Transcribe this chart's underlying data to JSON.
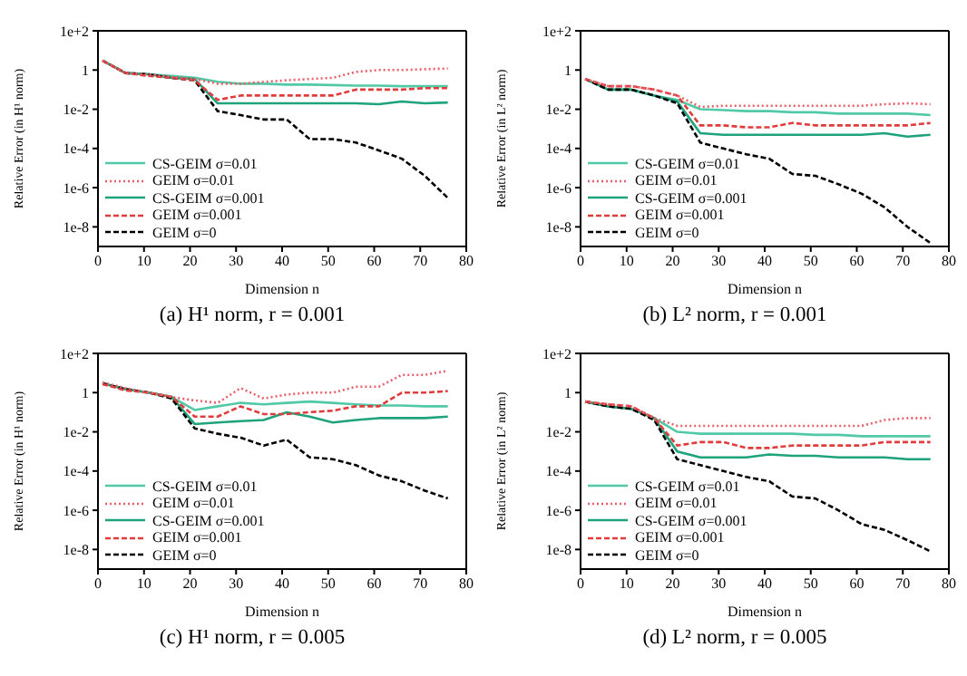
{
  "chart_data": [
    {
      "type": "line",
      "title": "(a) H¹ norm, r = 0.001",
      "xlabel": "Dimension n",
      "ylabel": "Relative Error (in H¹ norm)",
      "log": "y",
      "legend": "bottom left",
      "x": [
        1,
        6,
        11,
        16,
        21,
        26,
        31,
        36,
        41,
        46,
        51,
        56,
        61,
        66,
        71,
        76
      ],
      "xlim": [
        0,
        80
      ],
      "xticks": [
        0,
        10,
        20,
        30,
        40,
        50,
        60,
        70,
        80
      ],
      "ylim": [
        1e-09,
        100
      ],
      "yticks": [
        {
          "value": 100,
          "label": "1e+2"
        },
        {
          "value": 1,
          "label": "1"
        },
        {
          "value": 0.01,
          "label": "1e-2"
        },
        {
          "value": 0.0001,
          "label": "1e-4"
        },
        {
          "value": 1e-06,
          "label": "1e-6"
        },
        {
          "value": 1e-08,
          "label": "1e-8"
        }
      ],
      "series": [
        {
          "name": "CS-GEIM σ=0.01",
          "color": "#52c9a6",
          "line_style": "solid",
          "values": [
            3,
            0.7,
            0.6,
            0.5,
            0.4,
            0.25,
            0.2,
            0.2,
            0.18,
            0.18,
            0.17,
            0.16,
            0.16,
            0.15,
            0.15,
            0.15
          ]
        },
        {
          "name": "GEIM σ=0.01",
          "color": "#e8606a",
          "line_style": "dotted",
          "values": [
            3,
            0.7,
            0.6,
            0.45,
            0.35,
            0.2,
            0.2,
            0.25,
            0.3,
            0.35,
            0.4,
            0.8,
            1,
            1,
            1.1,
            1.2
          ]
        },
        {
          "name": "CS-GEIM σ=0.001",
          "color": "#1fa37c",
          "line_style": "solid",
          "values": [
            3,
            0.7,
            0.6,
            0.4,
            0.35,
            0.02,
            0.02,
            0.02,
            0.02,
            0.02,
            0.02,
            0.02,
            0.018,
            0.025,
            0.02,
            0.022
          ]
        },
        {
          "name": "GEIM σ=0.001",
          "color": "#e03c3c",
          "line_style": "dashed",
          "values": [
            3,
            0.7,
            0.5,
            0.4,
            0.3,
            0.03,
            0.05,
            0.05,
            0.05,
            0.05,
            0.05,
            0.1,
            0.1,
            0.1,
            0.12,
            0.12
          ]
        },
        {
          "name": "GEIM σ=0",
          "color": "#000000",
          "line_style": "dashed",
          "values": [
            3,
            0.7,
            0.6,
            0.4,
            0.3,
            0.008,
            0.005,
            0.003,
            0.003,
            0.0003,
            0.0003,
            0.0002,
            8e-05,
            3e-05,
            4e-06,
            3e-07
          ]
        }
      ]
    },
    {
      "type": "line",
      "title": "(b) L² norm, r = 0.001",
      "xlabel": "Dimension n",
      "ylabel": "Relative Error (in L² norm)",
      "log": "y",
      "legend": "bottom left",
      "x": [
        1,
        6,
        11,
        16,
        21,
        26,
        31,
        36,
        41,
        46,
        51,
        56,
        61,
        66,
        71,
        76
      ],
      "xlim": [
        0,
        80
      ],
      "xticks": [
        0,
        10,
        20,
        30,
        40,
        50,
        60,
        70,
        80
      ],
      "ylim": [
        1e-09,
        100
      ],
      "yticks": [
        {
          "value": 100,
          "label": "1e+2"
        },
        {
          "value": 1,
          "label": "1"
        },
        {
          "value": 0.01,
          "label": "1e-2"
        },
        {
          "value": 0.0001,
          "label": "1e-4"
        },
        {
          "value": 1e-06,
          "label": "1e-6"
        },
        {
          "value": 1e-08,
          "label": "1e-8"
        }
      ],
      "series": [
        {
          "name": "CS-GEIM σ=0.01",
          "color": "#52c9a6",
          "line_style": "solid",
          "values": [
            0.35,
            0.1,
            0.1,
            0.05,
            0.03,
            0.01,
            0.009,
            0.008,
            0.008,
            0.007,
            0.007,
            0.006,
            0.006,
            0.006,
            0.006,
            0.005
          ]
        },
        {
          "name": "GEIM σ=0.01",
          "color": "#e8606a",
          "line_style": "dotted",
          "values": [
            0.35,
            0.15,
            0.15,
            0.1,
            0.05,
            0.013,
            0.015,
            0.015,
            0.015,
            0.015,
            0.015,
            0.015,
            0.015,
            0.018,
            0.02,
            0.018
          ]
        },
        {
          "name": "CS-GEIM σ=0.001",
          "color": "#1fa37c",
          "line_style": "solid",
          "values": [
            0.35,
            0.1,
            0.1,
            0.05,
            0.025,
            0.0006,
            0.0005,
            0.0005,
            0.0005,
            0.0005,
            0.0005,
            0.0005,
            0.0005,
            0.0006,
            0.0004,
            0.0005
          ]
        },
        {
          "name": "GEIM σ=0.001",
          "color": "#e03c3c",
          "line_style": "dashed",
          "values": [
            0.35,
            0.15,
            0.15,
            0.1,
            0.05,
            0.0015,
            0.0015,
            0.0012,
            0.0012,
            0.002,
            0.0015,
            0.0015,
            0.0015,
            0.0015,
            0.0015,
            0.002
          ]
        },
        {
          "name": "GEIM σ=0",
          "color": "#000000",
          "line_style": "dashed",
          "values": [
            0.35,
            0.1,
            0.1,
            0.05,
            0.02,
            0.0002,
            0.0001,
            5e-05,
            3e-05,
            5e-06,
            4e-06,
            1.5e-06,
            5e-07,
            1e-07,
            1e-08,
            1.5e-09
          ]
        }
      ]
    },
    {
      "type": "line",
      "title": "(c) H¹ norm, r = 0.005",
      "xlabel": "Dimension n",
      "ylabel": "Relative Error (in H¹ norm)",
      "log": "y",
      "legend": "bottom left",
      "x": [
        1,
        6,
        11,
        16,
        21,
        26,
        31,
        36,
        41,
        46,
        51,
        56,
        61,
        66,
        71,
        76
      ],
      "xlim": [
        0,
        80
      ],
      "xticks": [
        0,
        10,
        20,
        30,
        40,
        50,
        60,
        70,
        80
      ],
      "ylim": [
        1e-09,
        100
      ],
      "yticks": [
        {
          "value": 100,
          "label": "1e+2"
        },
        {
          "value": 1,
          "label": "1"
        },
        {
          "value": 0.01,
          "label": "1e-2"
        },
        {
          "value": 0.0001,
          "label": "1e-4"
        },
        {
          "value": 1e-06,
          "label": "1e-6"
        },
        {
          "value": 1e-08,
          "label": "1e-8"
        }
      ],
      "series": [
        {
          "name": "CS-GEIM σ=0.01",
          "color": "#52c9a6",
          "line_style": "solid",
          "values": [
            3,
            1.5,
            1,
            0.6,
            0.13,
            0.2,
            0.3,
            0.25,
            0.3,
            0.35,
            0.3,
            0.25,
            0.22,
            0.22,
            0.2,
            0.2
          ]
        },
        {
          "name": "GEIM σ=0.01",
          "color": "#e8606a",
          "line_style": "dotted",
          "values": [
            3.3,
            1.7,
            1,
            0.6,
            0.4,
            0.3,
            1.7,
            0.5,
            0.8,
            1,
            1,
            2,
            2,
            8,
            8,
            13
          ]
        },
        {
          "name": "CS-GEIM σ=0.001",
          "color": "#1fa37c",
          "line_style": "solid",
          "values": [
            3,
            1.5,
            1,
            0.6,
            0.025,
            0.03,
            0.035,
            0.04,
            0.1,
            0.06,
            0.03,
            0.04,
            0.05,
            0.05,
            0.05,
            0.06
          ]
        },
        {
          "name": "GEIM σ=0.001",
          "color": "#e03c3c",
          "line_style": "dashed",
          "values": [
            2.7,
            1.3,
            1,
            0.6,
            0.06,
            0.06,
            0.2,
            0.08,
            0.08,
            0.1,
            0.12,
            0.2,
            0.2,
            1,
            1,
            1.2
          ]
        },
        {
          "name": "GEIM σ=0",
          "color": "#000000",
          "line_style": "dashed",
          "values": [
            3,
            1.5,
            1,
            0.5,
            0.015,
            0.008,
            0.005,
            0.002,
            0.004,
            0.0005,
            0.0004,
            0.0002,
            6e-05,
            3e-05,
            1e-05,
            4e-06
          ]
        }
      ]
    },
    {
      "type": "line",
      "title": "(d) L² norm, r = 0.005",
      "xlabel": "Dimension n",
      "ylabel": "Relative Error (in L² norm)",
      "log": "y",
      "legend": "bottom left",
      "x": [
        1,
        6,
        11,
        16,
        21,
        26,
        31,
        36,
        41,
        46,
        51,
        56,
        61,
        66,
        71,
        76
      ],
      "xlim": [
        0,
        80
      ],
      "xticks": [
        0,
        10,
        20,
        30,
        40,
        50,
        60,
        70,
        80
      ],
      "ylim": [
        1e-09,
        100
      ],
      "yticks": [
        {
          "value": 100,
          "label": "1e+2"
        },
        {
          "value": 1,
          "label": "1"
        },
        {
          "value": 0.01,
          "label": "1e-2"
        },
        {
          "value": 0.0001,
          "label": "1e-4"
        },
        {
          "value": 1e-06,
          "label": "1e-6"
        },
        {
          "value": 1e-08,
          "label": "1e-8"
        }
      ],
      "series": [
        {
          "name": "CS-GEIM σ=0.01",
          "color": "#52c9a6",
          "line_style": "solid",
          "values": [
            0.35,
            0.2,
            0.15,
            0.05,
            0.01,
            0.008,
            0.008,
            0.008,
            0.008,
            0.008,
            0.007,
            0.007,
            0.006,
            0.006,
            0.006,
            0.006
          ]
        },
        {
          "name": "GEIM σ=0.01",
          "color": "#e8606a",
          "line_style": "dotted",
          "values": [
            0.35,
            0.25,
            0.2,
            0.05,
            0.02,
            0.02,
            0.02,
            0.02,
            0.02,
            0.02,
            0.02,
            0.02,
            0.02,
            0.04,
            0.05,
            0.05
          ]
        },
        {
          "name": "CS-GEIM σ=0.001",
          "color": "#1fa37c",
          "line_style": "solid",
          "values": [
            0.35,
            0.2,
            0.15,
            0.05,
            0.001,
            0.0005,
            0.0005,
            0.0005,
            0.0007,
            0.0006,
            0.0006,
            0.0005,
            0.0005,
            0.0005,
            0.0004,
            0.0004
          ]
        },
        {
          "name": "GEIM σ=0.001",
          "color": "#e03c3c",
          "line_style": "dashed",
          "values": [
            0.35,
            0.25,
            0.2,
            0.05,
            0.002,
            0.003,
            0.003,
            0.0015,
            0.0015,
            0.002,
            0.002,
            0.002,
            0.002,
            0.003,
            0.003,
            0.003
          ]
        },
        {
          "name": "GEIM σ=0",
          "color": "#000000",
          "line_style": "dashed",
          "values": [
            0.35,
            0.2,
            0.15,
            0.04,
            0.0004,
            0.0002,
            0.0001,
            5e-05,
            3e-05,
            5e-06,
            4e-06,
            1e-06,
            2e-07,
            1e-07,
            3e-08,
            8e-09
          ]
        }
      ]
    }
  ]
}
